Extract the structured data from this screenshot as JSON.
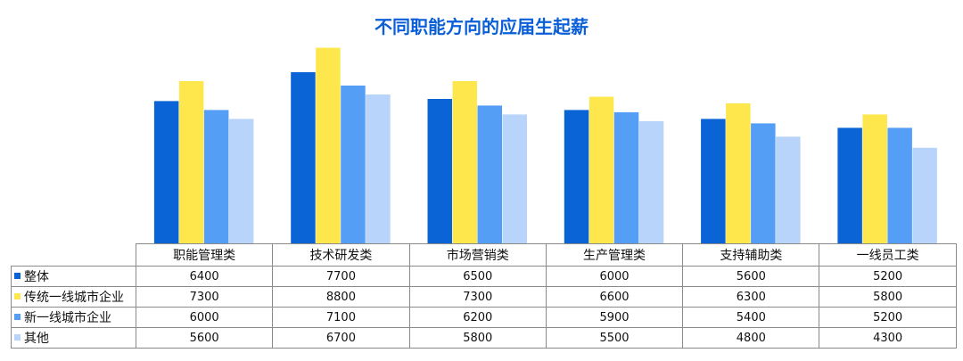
{
  "chart_data": {
    "type": "bar",
    "title": "不同职能方向的应届生起薪",
    "categories": [
      "职能管理类",
      "技术研发类",
      "市场营销类",
      "生产管理类",
      "支持辅助类",
      "一线员工类"
    ],
    "series": [
      {
        "name": "整体",
        "color": "#0a64d6",
        "values": [
          6400,
          7700,
          6500,
          6000,
          5600,
          5200
        ]
      },
      {
        "name": "传统一线城市企业",
        "color": "#fde74c",
        "values": [
          7300,
          8800,
          7300,
          6600,
          6300,
          5800
        ]
      },
      {
        "name": "新一线城市企业",
        "color": "#559ef5",
        "values": [
          6000,
          7100,
          6200,
          5900,
          5400,
          5200
        ]
      },
      {
        "name": "其他",
        "color": "#b8d4fb",
        "values": [
          5600,
          6700,
          5800,
          5500,
          4800,
          4300
        ]
      }
    ],
    "ylim": [
      0,
      9600
    ],
    "grid": false,
    "legend": "table"
  }
}
